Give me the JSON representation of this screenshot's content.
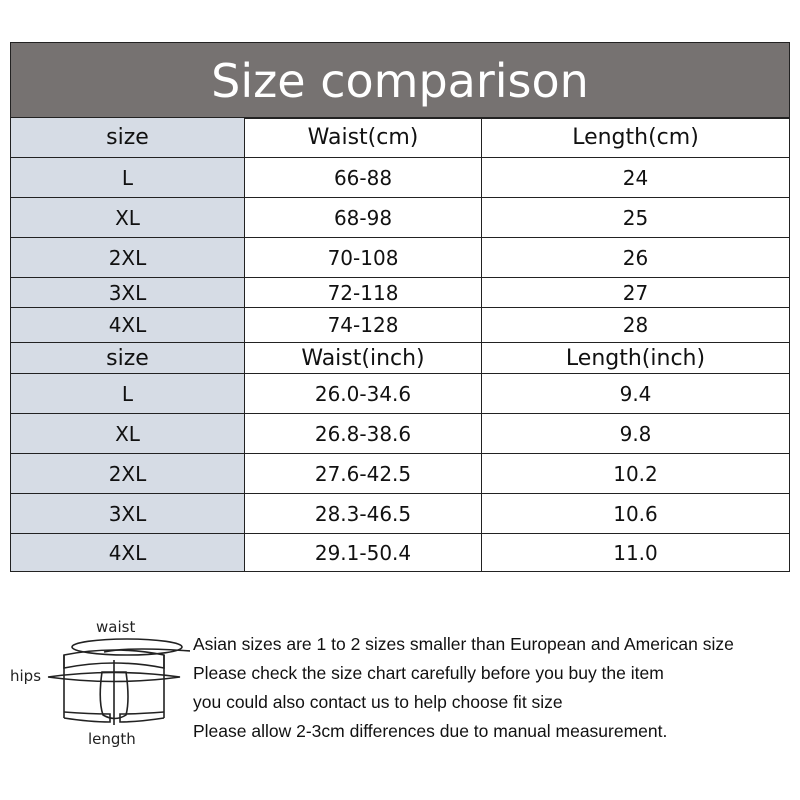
{
  "title": "Size comparison",
  "tables": [
    {
      "header": [
        "size",
        "Waist(cm)",
        "Length(cm)"
      ],
      "rows": [
        [
          "L",
          "66-88",
          "24"
        ],
        [
          "XL",
          "68-98",
          "25"
        ],
        [
          "2XL",
          "70-108",
          "26"
        ],
        [
          "3XL",
          "72-118",
          "27"
        ],
        [
          "4XL",
          "74-128",
          "28"
        ]
      ]
    },
    {
      "header": [
        "size",
        "Waist(inch)",
        "Length(inch)"
      ],
      "rows": [
        [
          "L",
          "26.0-34.6",
          "9.4"
        ],
        [
          "XL",
          "26.8-38.6",
          "9.8"
        ],
        [
          "2XL",
          "27.6-42.5",
          "10.2"
        ],
        [
          "3XL",
          "28.3-46.5",
          "10.6"
        ],
        [
          "4XL",
          "29.1-50.4",
          "11.0"
        ]
      ]
    }
  ],
  "diagram": {
    "waist": "waist",
    "hips": "hips",
    "length": "length"
  },
  "notes": [
    "Asian sizes are 1 to 2 sizes smaller than European and American size",
    "Please check the size chart carefully before you buy the item",
    "you could also contact us to help choose fit size",
    "Please allow 2-3cm differences due to manual measurement."
  ],
  "colors": {
    "title_bg": "#767271",
    "size_col_bg": "#d6dce5"
  }
}
